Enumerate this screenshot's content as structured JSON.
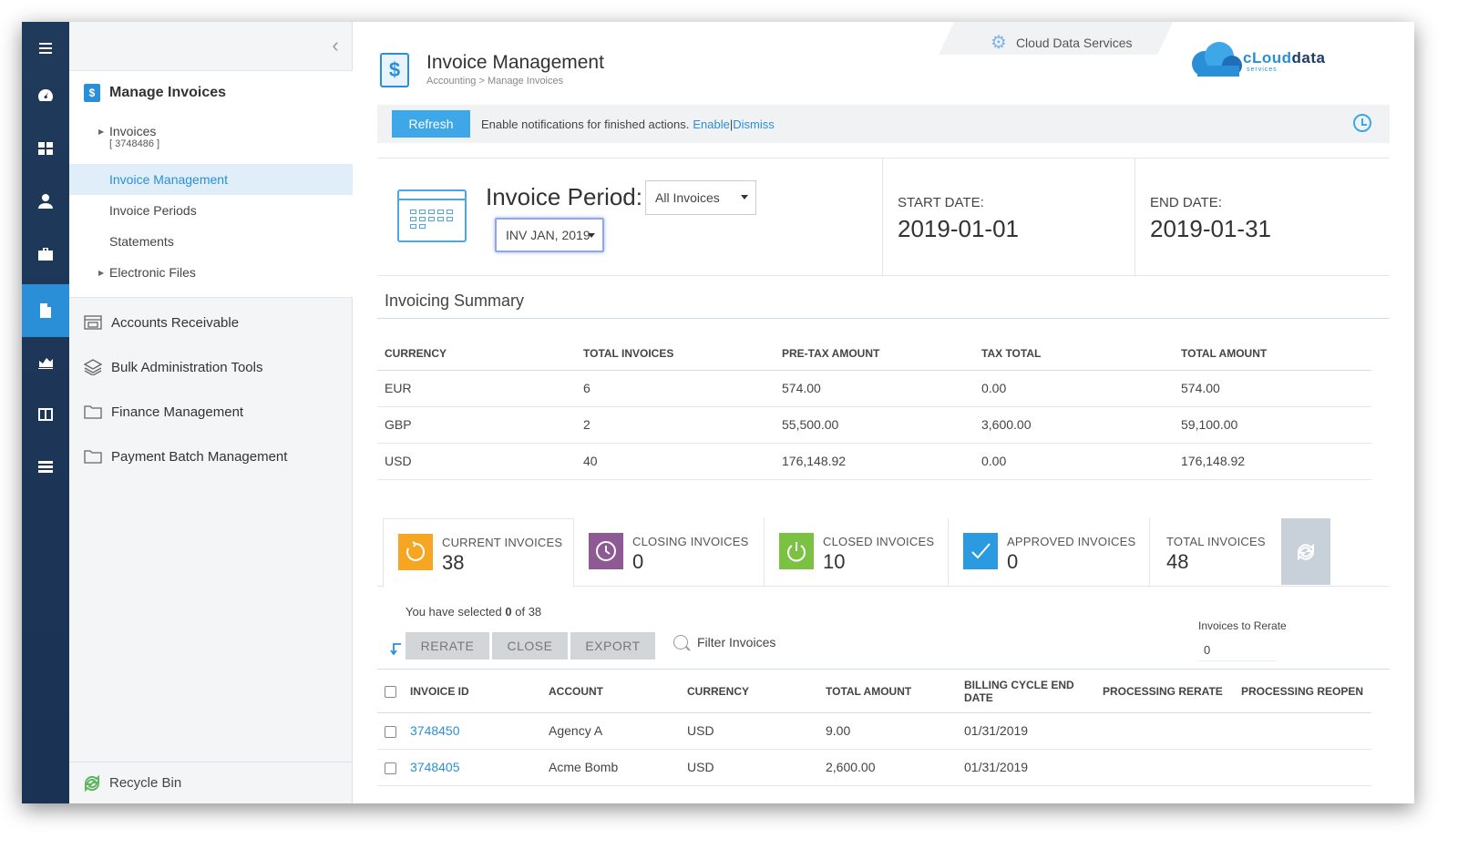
{
  "rail": {
    "items": [
      "menu-icon",
      "dashboard-icon",
      "grid-icon",
      "user-icon",
      "briefcase-icon",
      "document-icon",
      "chart-icon",
      "columns-icon",
      "server-icon"
    ],
    "active_index": 5
  },
  "sidebar": {
    "header": "Manage Invoices",
    "invoices_label": "Invoices",
    "invoices_sub": "[ 3748486 ]",
    "links": [
      "Invoice Management",
      "Invoice Periods",
      "Statements",
      "Electronic Files"
    ],
    "sections": [
      "Accounts Receivable",
      "Bulk Administration Tools",
      "Finance Management",
      "Payment Batch Management"
    ],
    "recycle": "Recycle Bin"
  },
  "header": {
    "title": "Invoice Management",
    "breadcrumb": "Accounting > Manage Invoices",
    "service": "Cloud Data Services",
    "logo_a": "cLoud",
    "logo_b": "data",
    "logo_sub": "services"
  },
  "notify": {
    "refresh": "Refresh",
    "text": "Enable notifications for finished actions.",
    "enable": "Enable",
    "sep": "|",
    "dismiss": "Dismiss"
  },
  "period": {
    "label": "Invoice Period:",
    "filter": "All Invoices",
    "selected": "INV JAN, 2019",
    "start_label": "START DATE:",
    "start_value": "2019-01-01",
    "end_label": "END DATE:",
    "end_value": "2019-01-31"
  },
  "summary": {
    "title": "Invoicing Summary",
    "columns": [
      "CURRENCY",
      "TOTAL INVOICES",
      "PRE-TAX AMOUNT",
      "TAX TOTAL",
      "TOTAL AMOUNT"
    ],
    "rows": [
      [
        "EUR",
        "6",
        "574.00",
        "0.00",
        "574.00"
      ],
      [
        "GBP",
        "2",
        "55,500.00",
        "3,600.00",
        "59,100.00"
      ],
      [
        "USD",
        "40",
        "176,148.92",
        "0.00",
        "176,148.92"
      ]
    ]
  },
  "tabs": [
    {
      "label": "CURRENT INVOICES",
      "count": "38",
      "color": "#f5a623",
      "icon": "refresh-arrow-icon"
    },
    {
      "label": "CLOSING INVOICES",
      "count": "0",
      "color": "#8e5a93",
      "icon": "clock-icon"
    },
    {
      "label": "CLOSED INVOICES",
      "count": "10",
      "color": "#7cc242",
      "icon": "power-icon"
    },
    {
      "label": "APPROVED INVOICES",
      "count": "0",
      "color": "#2a9be0",
      "icon": "check-icon"
    },
    {
      "label": "TOTAL INVOICES",
      "count": "48",
      "color": "",
      "icon": ""
    }
  ],
  "selection": {
    "prefix": "You have selected ",
    "count": "0",
    "suffix": " of 38"
  },
  "actions": {
    "rerate": "RERATE",
    "close": "CLOSE",
    "export": "EXPORT",
    "filter": "Filter Invoices",
    "rerate_label": "Invoices to Rerate",
    "rerate_value": "0"
  },
  "invoices": {
    "columns": [
      "INVOICE ID",
      "ACCOUNT",
      "CURRENCY",
      "TOTAL AMOUNT",
      "BILLING CYCLE END DATE",
      "PROCESSING RERATE",
      "PROCESSING REOPEN"
    ],
    "rows": [
      {
        "id": "3748450",
        "account": "Agency A",
        "currency": "USD",
        "amount": "9.00",
        "date": "01/31/2019"
      },
      {
        "id": "3748405",
        "account": "Acme Bomb",
        "currency": "USD",
        "amount": "2,600.00",
        "date": "01/31/2019"
      }
    ]
  }
}
